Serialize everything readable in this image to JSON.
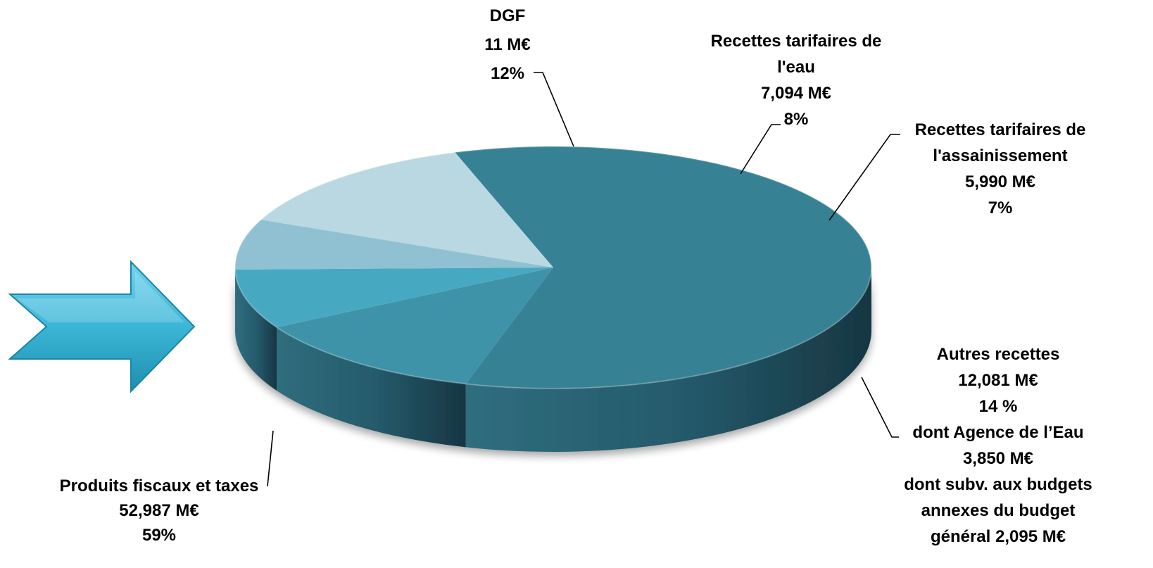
{
  "chart_data": {
    "type": "pie",
    "title": "",
    "view": "3d",
    "slices": [
      {
        "name": "Produits fiscaux et taxes",
        "value": 52.987,
        "unit": "M€",
        "percent": 59,
        "color": "#378194",
        "label_lines": [
          "Produits fiscaux et taxes",
          "52,987 M€",
          "59%"
        ]
      },
      {
        "name": "DGF",
        "value": 11,
        "unit": "M€",
        "percent": 12,
        "color": "#3f93a9",
        "label_lines": [
          "DGF",
          "11 M€",
          "12%"
        ]
      },
      {
        "name": "Recettes tarifaires de l'eau",
        "value": 7.094,
        "unit": "M€",
        "percent": 8,
        "color": "#47a9c1",
        "label_lines": [
          "Recettes tarifaires de",
          "l'eau",
          "7,094 M€",
          "8%"
        ]
      },
      {
        "name": "Recettes tarifaires de l'assainissement",
        "value": 5.99,
        "unit": "M€",
        "percent": 7,
        "color": "#8fc1d2",
        "label_lines": [
          "Recettes tarifaires de",
          "l'assainissement",
          "5,990 M€",
          "7%"
        ]
      },
      {
        "name": "Autres recettes",
        "value": 12.081,
        "unit": "M€",
        "percent": 14,
        "color": "#b9d8e1",
        "label_lines": [
          "Autres recettes",
          "12,081 M€",
          "14 %",
          "dont Agence de l’Eau",
          "3,850 M€",
          "dont subv. aux budgets",
          "annexes du budget",
          "général 2,095 M€"
        ]
      }
    ]
  },
  "decor": {
    "arrow_icon": "right-arrow-icon",
    "arrow_color": "#3bb6d6"
  }
}
